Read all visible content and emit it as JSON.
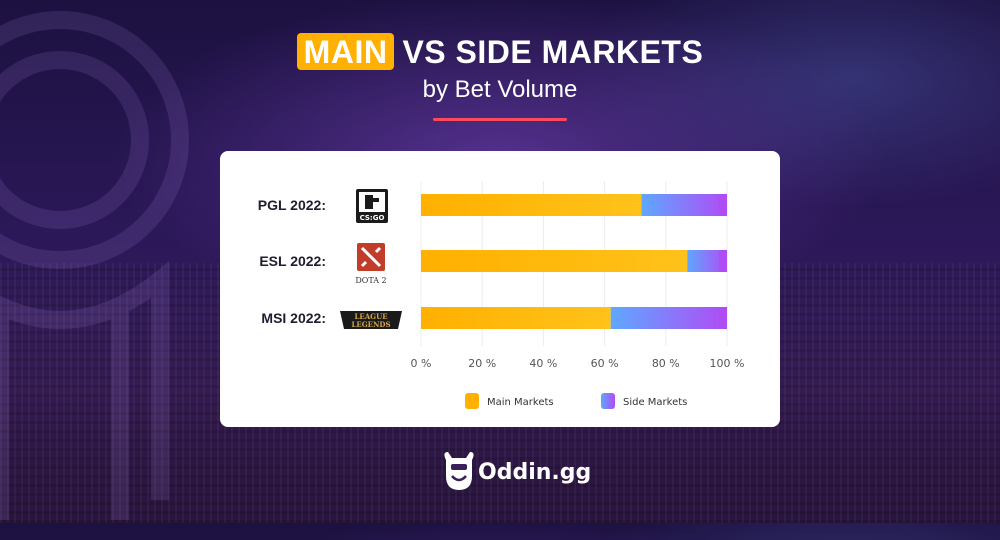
{
  "title": {
    "highlight": "MAIN",
    "rest": "VS SIDE MARKETS"
  },
  "subtitle": "by Bet Volume",
  "brand": {
    "name": "Oddin.gg"
  },
  "chart_data": {
    "type": "bar",
    "orientation": "horizontal",
    "stacked": true,
    "categories": [
      "PGL 2022:",
      "ESL 2022:",
      "MSI 2022:"
    ],
    "category_logos": [
      "CS:GO",
      "DOTA 2",
      "League of Legends"
    ],
    "series": [
      {
        "name": "Main Markets",
        "values": [
          72,
          87,
          62
        ],
        "color": "#ffb000"
      },
      {
        "name": "Side Markets",
        "values": [
          28,
          13,
          38
        ],
        "color": "#8a5cf0"
      }
    ],
    "x_ticks": [
      "0 %",
      "20 %",
      "40 %",
      "60 %",
      "80 %",
      "100 %"
    ],
    "xlim": [
      0,
      100
    ],
    "grid": true,
    "legend": "bottom-center"
  },
  "colors": {
    "accent": "#ffb000",
    "underline": "#ff4a5e",
    "side_start": "#5ea8ff",
    "side_end": "#b04cf5"
  }
}
